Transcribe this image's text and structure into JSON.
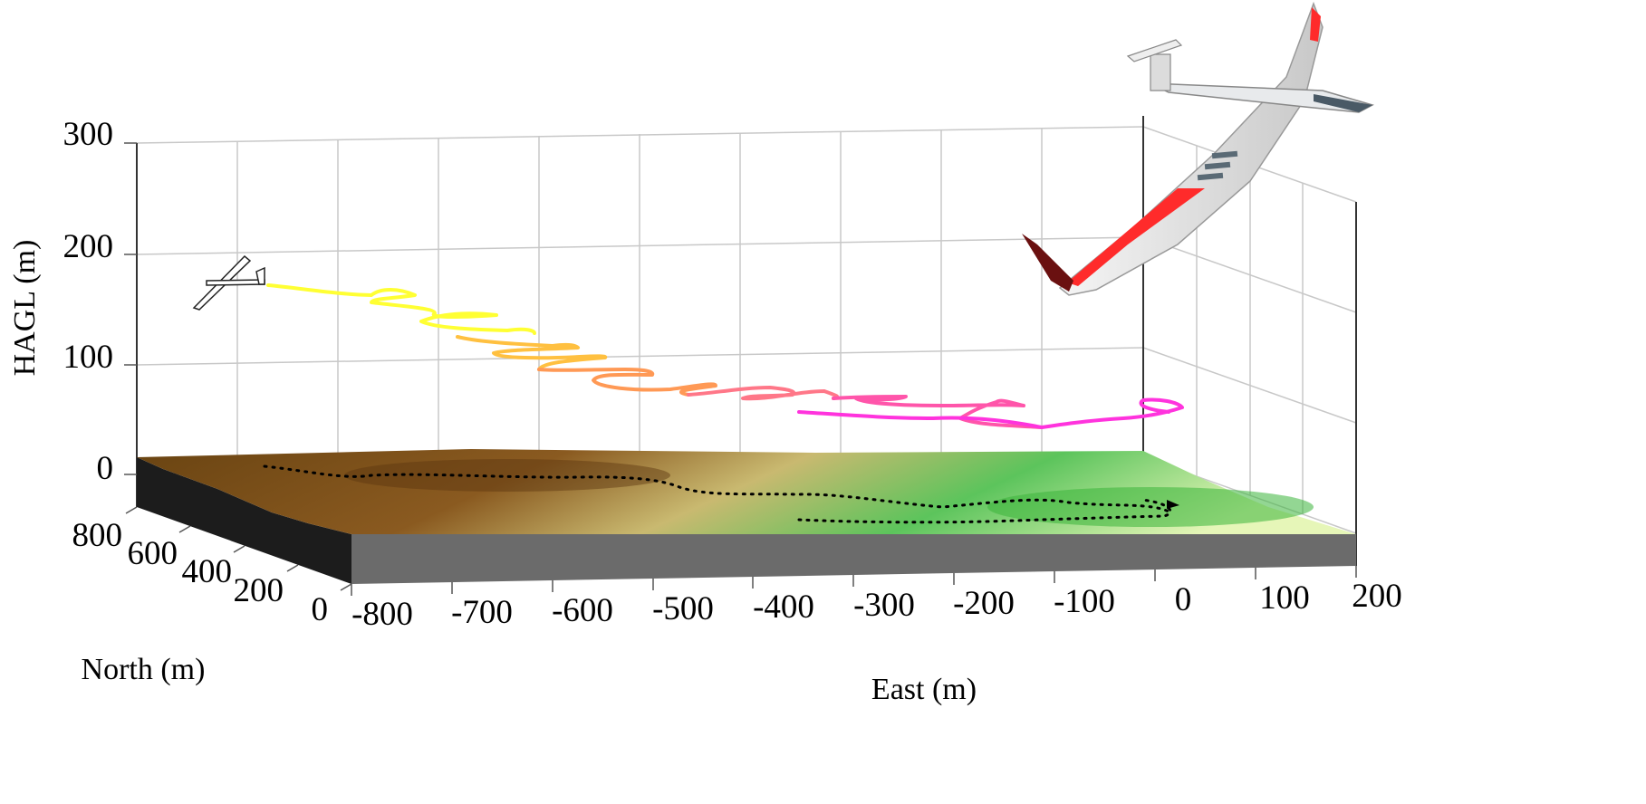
{
  "chart_data": {
    "type": "3d-line",
    "title": "",
    "xlabel": "East (m)",
    "ylabel": "North (m)",
    "zlabel": "HAGL (m)",
    "xlim": [
      -800,
      200
    ],
    "ylim": [
      0,
      800
    ],
    "zlim": [
      0,
      300
    ],
    "x_ticks": [
      "-800",
      "-700",
      "-600",
      "-500",
      "-400",
      "-300",
      "-200",
      "-100",
      "0",
      "100",
      "200"
    ],
    "y_ticks": [
      "0",
      "200",
      "400",
      "600",
      "800"
    ],
    "z_ticks": [
      "0",
      "100",
      "200",
      "300"
    ],
    "grid": true,
    "colormap": [
      "#ffff33",
      "#ff9944",
      "#ff7799",
      "#ff33dd"
    ],
    "terrain_colors": [
      "#5a3a12",
      "#a07a30",
      "#d8d890",
      "#44b844",
      "#e8f5b0"
    ],
    "track_color": "#000000",
    "flight_path": [
      {
        "x": -795,
        "z": 170
      },
      {
        "x": -760,
        "z": 162
      },
      {
        "x": -720,
        "z": 155
      },
      {
        "x": -690,
        "z": 150
      },
      {
        "x": -650,
        "z": 142
      },
      {
        "x": -610,
        "z": 133
      },
      {
        "x": -570,
        "z": 125
      },
      {
        "x": -540,
        "z": 118
      },
      {
        "x": -500,
        "z": 107
      },
      {
        "x": -460,
        "z": 100
      },
      {
        "x": -420,
        "z": 94
      },
      {
        "x": -380,
        "z": 88
      },
      {
        "x": -340,
        "z": 84
      },
      {
        "x": -300,
        "z": 80
      },
      {
        "x": -260,
        "z": 76
      },
      {
        "x": -220,
        "z": 72
      },
      {
        "x": -180,
        "z": 70
      },
      {
        "x": -140,
        "z": 68
      },
      {
        "x": -100,
        "z": 66
      },
      {
        "x": -60,
        "z": 64
      },
      {
        "x": -20,
        "z": 62
      }
    ]
  }
}
